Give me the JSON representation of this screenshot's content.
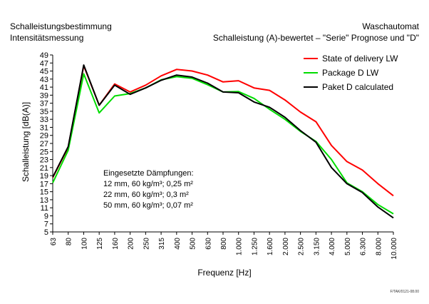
{
  "header": {
    "left_line1": "Schalleistungsbestimmung",
    "left_line2": "Intensitätsmessung",
    "right_line1": "Waschautomat",
    "right_line2": "Schalleistung (A)-bewertet – \"Serie\" Prognose und \"D\""
  },
  "footer": {
    "code": "F/TAK/0121-08.00"
  },
  "annotation": {
    "title": "Eingesetzte Dämpfungen:",
    "lines": [
      "12 mm, 60 kg/m³; 0,25 m²",
      "22 mm, 60 kg/m³; 0,3 m²",
      "50 mm, 60 kg/m³; 0,07 m²"
    ]
  },
  "chart_data": {
    "type": "line",
    "title": "",
    "xlabel": "Frequenz [Hz]",
    "ylabel": "Schalleistung [dB(A)]",
    "ylim": [
      5,
      49
    ],
    "y_ticks": [
      5,
      7,
      9,
      11,
      13,
      15,
      17,
      19,
      21,
      23,
      25,
      27,
      29,
      31,
      33,
      35,
      37,
      39,
      41,
      43,
      45,
      47,
      49
    ],
    "grid": false,
    "legend_position": "top-right",
    "categories": [
      "63",
      "80",
      "100",
      "125",
      "160",
      "200",
      "250",
      "315",
      "400",
      "500",
      "630",
      "800",
      "1.000",
      "1.250",
      "1.600",
      "2.000",
      "2.500",
      "3.150",
      "4.000",
      "5.000",
      "6.300",
      "8.000",
      "10.000"
    ],
    "series": [
      {
        "name": "State of delivery LW",
        "color": "#ff0000",
        "values": [
          18.5,
          26,
          46.3,
          36.5,
          41.8,
          39.8,
          41.5,
          43.8,
          45.4,
          45,
          44,
          42.3,
          42.6,
          40.8,
          40.2,
          37.8,
          34.8,
          32.4,
          26.5,
          22.5,
          20.4,
          17,
          14
        ]
      },
      {
        "name": "Package D LW",
        "color": "#00dd00",
        "values": [
          17.2,
          25.3,
          44.3,
          34.6,
          38.8,
          39.4,
          40.8,
          42.8,
          43.6,
          43.2,
          41.6,
          39.8,
          39.9,
          38.2,
          35.5,
          33,
          30,
          27.5,
          23,
          17.2,
          15,
          11.8,
          9.5
        ]
      },
      {
        "name": "Paket D calculated",
        "color": "#000000",
        "values": [
          18.6,
          26.2,
          46.5,
          36.5,
          41.5,
          39.2,
          40.8,
          42.7,
          44,
          43.5,
          42,
          39.8,
          39.6,
          37.3,
          36,
          33.5,
          30.2,
          27.3,
          21,
          17,
          14.8,
          11.2,
          8.5
        ]
      }
    ]
  }
}
